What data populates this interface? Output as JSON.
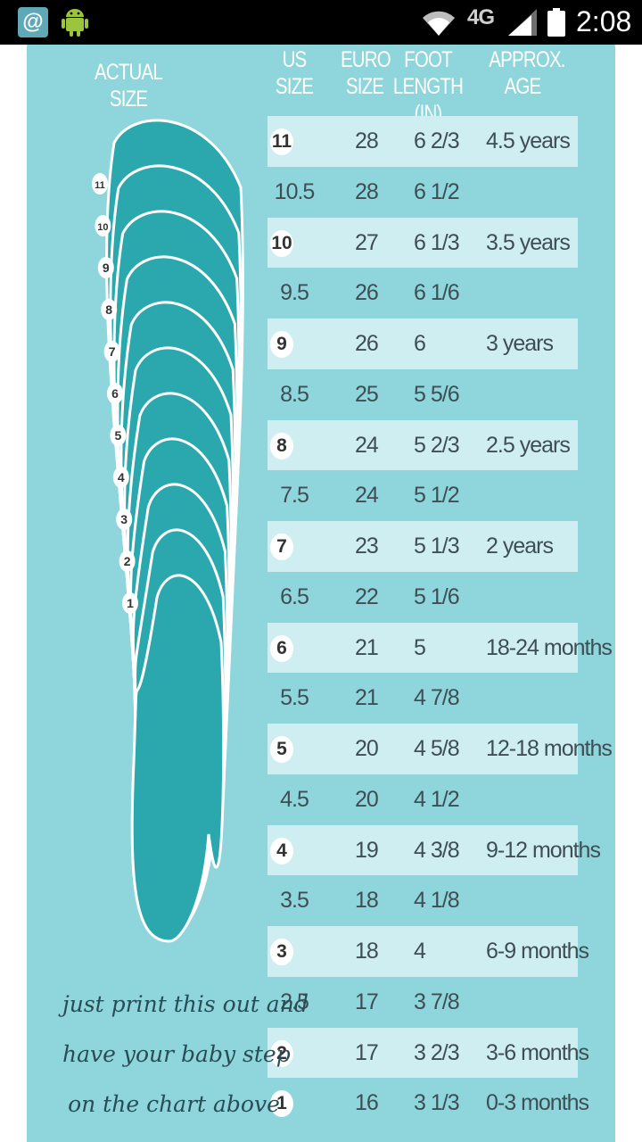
{
  "status_bar": {
    "app_icon_glyph": "@",
    "network": "4G",
    "time": "2:08",
    "icons": [
      "email-notification-icon",
      "android-debug-icon",
      "wifi-icon",
      "signal-icon",
      "battery-icon"
    ]
  },
  "chart": {
    "actual_size_label": "ACTUAL SIZE",
    "headers": {
      "us": [
        "US",
        "SIZE"
      ],
      "euro": [
        "EURO",
        "SIZE"
      ],
      "foot": [
        "FOOT",
        "LENGTH (IN)"
      ],
      "age": [
        "APPROX.",
        "AGE"
      ]
    },
    "rows": [
      {
        "us": "11",
        "euro": "28",
        "foot": "6 2/3",
        "age": "4.5 years",
        "whole": true
      },
      {
        "us": "10.5",
        "euro": "28",
        "foot": "6 1/2",
        "age": "",
        "whole": false
      },
      {
        "us": "10",
        "euro": "27",
        "foot": "6 1/3",
        "age": "3.5 years",
        "whole": true
      },
      {
        "us": "9.5",
        "euro": "26",
        "foot": "6 1/6",
        "age": "",
        "whole": false
      },
      {
        "us": "9",
        "euro": "26",
        "foot": "6",
        "age": "3 years",
        "whole": true
      },
      {
        "us": "8.5",
        "euro": "25",
        "foot": "5 5/6",
        "age": "",
        "whole": false
      },
      {
        "us": "8",
        "euro": "24",
        "foot": "5 2/3",
        "age": "2.5 years",
        "whole": true
      },
      {
        "us": "7.5",
        "euro": "24",
        "foot": "5 1/2",
        "age": "",
        "whole": false
      },
      {
        "us": "7",
        "euro": "23",
        "foot": "5 1/3",
        "age": "2 years",
        "whole": true
      },
      {
        "us": "6.5",
        "euro": "22",
        "foot": "5 1/6",
        "age": "",
        "whole": false
      },
      {
        "us": "6",
        "euro": "21",
        "foot": "5",
        "age": "18-24 months",
        "whole": true
      },
      {
        "us": "5.5",
        "euro": "21",
        "foot": "4 7/8",
        "age": "",
        "whole": false
      },
      {
        "us": "5",
        "euro": "20",
        "foot": "4 5/8",
        "age": "12-18 months",
        "whole": true
      },
      {
        "us": "4.5",
        "euro": "20",
        "foot": "4 1/2",
        "age": "",
        "whole": false
      },
      {
        "us": "4",
        "euro": "19",
        "foot": "4 3/8",
        "age": "9-12 months",
        "whole": true
      },
      {
        "us": "3.5",
        "euro": "18",
        "foot": "4 1/8",
        "age": "",
        "whole": false
      },
      {
        "us": "3",
        "euro": "18",
        "foot": "4",
        "age": "6-9 months",
        "whole": true
      },
      {
        "us": "2.5",
        "euro": "17",
        "foot": "3 7/8",
        "age": "",
        "whole": false
      },
      {
        "us": "2",
        "euro": "17",
        "foot": "3 2/3",
        "age": "3-6 months",
        "whole": true
      },
      {
        "us": "1",
        "euro": "16",
        "foot": "3 1/3",
        "age": "0-3 months",
        "whole": true
      }
    ],
    "foot_sizes": [
      "11",
      "10",
      "9",
      "8",
      "7",
      "6",
      "5",
      "4",
      "3",
      "2",
      "1"
    ],
    "tagline": [
      "just print this out and",
      "have your baby step",
      "on the chart above"
    ],
    "colors": {
      "background": "#8ed5dc",
      "band": "#cfeef1",
      "foot": "#2aa8ad",
      "text": "#3f4e55"
    }
  }
}
